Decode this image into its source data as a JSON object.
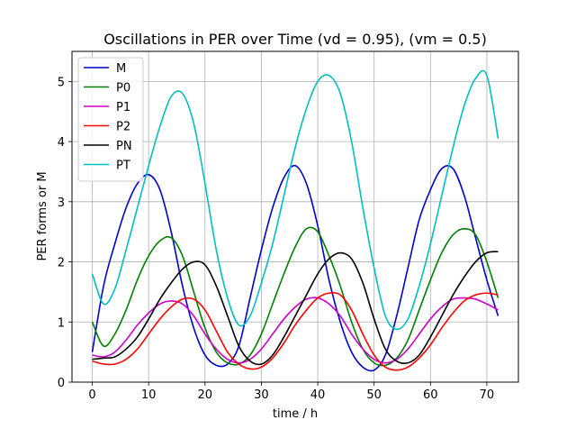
{
  "chart_data": {
    "type": "line",
    "title": "Oscillations in PER over Time (vd = 0.95), (vm = 0.5)",
    "xlabel": "time / h",
    "ylabel": "PER forms or M",
    "xlim": [
      -3.6,
      75.6
    ],
    "ylim": [
      0,
      5.5
    ],
    "xticks": [
      0,
      10,
      20,
      30,
      40,
      50,
      60,
      70
    ],
    "yticks": [
      0,
      1,
      2,
      3,
      4,
      5
    ],
    "grid": true,
    "legend_position": "upper-left",
    "x": [
      0,
      2,
      4,
      6,
      8,
      10,
      12,
      14,
      16,
      18,
      20,
      22,
      24,
      26,
      28,
      30,
      32,
      34,
      36,
      38,
      40,
      42,
      44,
      46,
      48,
      50,
      52,
      54,
      56,
      58,
      60,
      62,
      64,
      66,
      68,
      70,
      72
    ],
    "series": [
      {
        "name": "M",
        "color": "#0000cc",
        "values": [
          0.5,
          1.6,
          2.3,
          2.9,
          3.3,
          3.45,
          3.2,
          2.5,
          1.6,
          0.9,
          0.45,
          0.28,
          0.3,
          0.6,
          1.4,
          2.2,
          2.9,
          3.4,
          3.6,
          3.3,
          2.6,
          1.7,
          1.0,
          0.5,
          0.25,
          0.2,
          0.45,
          1.1,
          1.9,
          2.7,
          3.2,
          3.55,
          3.55,
          3.1,
          2.4,
          1.7,
          1.1
        ]
      },
      {
        "name": "P0",
        "color": "#008000",
        "values": [
          1.0,
          0.6,
          0.8,
          1.2,
          1.7,
          2.1,
          2.35,
          2.4,
          2.1,
          1.5,
          0.9,
          0.5,
          0.32,
          0.3,
          0.45,
          0.8,
          1.3,
          1.8,
          2.25,
          2.55,
          2.5,
          2.1,
          1.6,
          1.0,
          0.55,
          0.32,
          0.28,
          0.4,
          0.7,
          1.2,
          1.7,
          2.15,
          2.45,
          2.55,
          2.45,
          2.0,
          1.4
        ]
      },
      {
        "name": "P1",
        "color": "#cc00cc",
        "values": [
          0.45,
          0.42,
          0.5,
          0.7,
          0.95,
          1.15,
          1.3,
          1.35,
          1.3,
          1.1,
          0.8,
          0.55,
          0.38,
          0.32,
          0.38,
          0.55,
          0.8,
          1.05,
          1.25,
          1.38,
          1.4,
          1.3,
          1.1,
          0.8,
          0.55,
          0.38,
          0.32,
          0.38,
          0.55,
          0.8,
          1.05,
          1.25,
          1.38,
          1.4,
          1.38,
          1.3,
          1.2
        ]
      },
      {
        "name": "P2",
        "color": "#ff0000",
        "values": [
          0.35,
          0.3,
          0.3,
          0.38,
          0.55,
          0.8,
          1.05,
          1.25,
          1.38,
          1.38,
          1.2,
          0.85,
          0.5,
          0.3,
          0.22,
          0.25,
          0.4,
          0.65,
          0.95,
          1.2,
          1.4,
          1.48,
          1.45,
          1.2,
          0.8,
          0.45,
          0.25,
          0.2,
          0.25,
          0.4,
          0.62,
          0.9,
          1.15,
          1.35,
          1.45,
          1.48,
          1.45
        ]
      },
      {
        "name": "PN",
        "color": "#000000",
        "values": [
          0.38,
          0.4,
          0.42,
          0.55,
          0.75,
          1.05,
          1.38,
          1.65,
          1.88,
          2.0,
          1.95,
          1.6,
          1.1,
          0.6,
          0.35,
          0.3,
          0.45,
          0.75,
          1.1,
          1.45,
          1.8,
          2.05,
          2.15,
          2.05,
          1.65,
          1.05,
          0.55,
          0.35,
          0.32,
          0.45,
          0.75,
          1.1,
          1.45,
          1.75,
          2.0,
          2.15,
          2.17
        ]
      },
      {
        "name": "PT",
        "color": "#00bfbf",
        "values": [
          1.8,
          1.3,
          1.55,
          2.2,
          2.9,
          3.6,
          4.25,
          4.75,
          4.8,
          4.3,
          3.3,
          2.2,
          1.4,
          0.95,
          1.1,
          1.65,
          2.3,
          3.1,
          3.9,
          4.55,
          5.0,
          5.1,
          4.8,
          4.0,
          2.9,
          1.9,
          1.1,
          0.88,
          1.05,
          1.6,
          2.3,
          3.1,
          3.9,
          4.6,
          5.05,
          5.1,
          4.05
        ]
      }
    ]
  }
}
